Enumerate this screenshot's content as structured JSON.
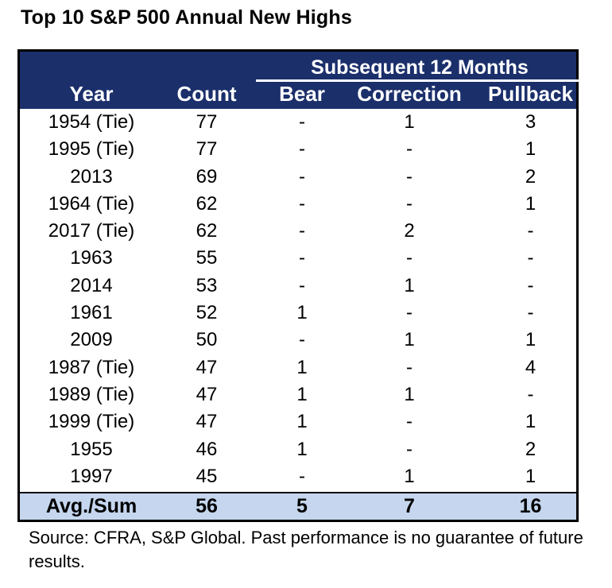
{
  "title": "Top 10 S&P 500 Annual New Highs",
  "header": {
    "group_label": "Subsequent 12 Months",
    "columns": [
      "Year",
      "Count",
      "Bear",
      "Correction",
      "Pullback"
    ]
  },
  "rows": [
    [
      "1954 (Tie)",
      "77",
      "-",
      "1",
      "3"
    ],
    [
      "1995 (Tie)",
      "77",
      "-",
      "-",
      "1"
    ],
    [
      "2013",
      "69",
      "-",
      "-",
      "2"
    ],
    [
      "1964 (Tie)",
      "62",
      "-",
      "-",
      "1"
    ],
    [
      "2017 (Tie)",
      "62",
      "-",
      "2",
      "-"
    ],
    [
      "1963",
      "55",
      "-",
      "-",
      "-"
    ],
    [
      "2014",
      "53",
      "-",
      "1",
      "-"
    ],
    [
      "1961",
      "52",
      "1",
      "-",
      "-"
    ],
    [
      "2009",
      "50",
      "-",
      "1",
      "1"
    ],
    [
      "1987 (Tie)",
      "47",
      "1",
      "-",
      "4"
    ],
    [
      "1989 (Tie)",
      "47",
      "1",
      "1",
      "-"
    ],
    [
      "1999 (Tie)",
      "47",
      "1",
      "-",
      "1"
    ],
    [
      "1955",
      "46",
      "1",
      "-",
      "2"
    ],
    [
      "1997",
      "45",
      "-",
      "1",
      "1"
    ]
  ],
  "footer": [
    "Avg./Sum",
    "56",
    "5",
    "7",
    "16"
  ],
  "source_note": "Source: CFRA, S&P Global. Past performance is no guarantee of future results.",
  "colors": {
    "header_bg": "#1b2f6b",
    "footer_bg": "#c5d6ee"
  }
}
